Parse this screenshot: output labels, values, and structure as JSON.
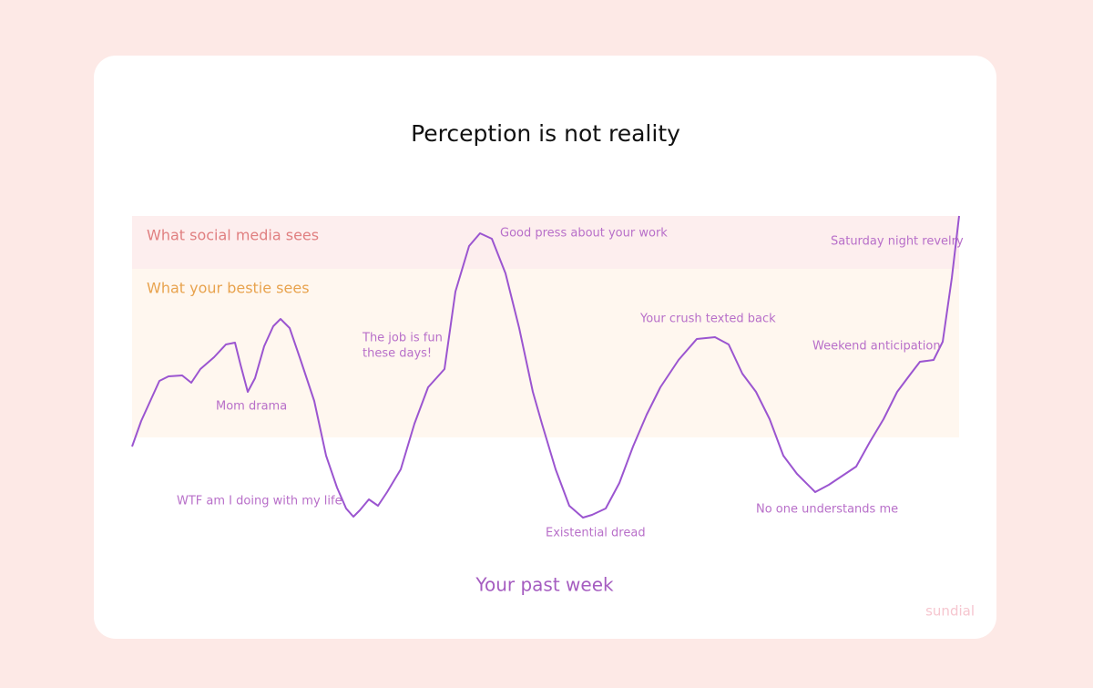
{
  "chart_data": {
    "type": "line",
    "title": "Perception is not reality",
    "x_label": "Your past week",
    "brand": "sundial",
    "xlim": [
      0,
      908
    ],
    "ylim": [
      0,
      343
    ],
    "bands": [
      {
        "label": "What social media sees",
        "from": 285,
        "to": 343,
        "color": "#fdeeee",
        "label_color": "#e07f80"
      },
      {
        "label": "What your bestie sees",
        "from": 100,
        "to": 285,
        "color": "#fff7ef",
        "label_color": "#e8a34e"
      }
    ],
    "series": [
      {
        "name": "Your past week",
        "color": "#9b55d0",
        "x": [
          0,
          10,
          20,
          30,
          40,
          55,
          65,
          75,
          90,
          103,
          113,
          119,
          127,
          135,
          145,
          155,
          163,
          173,
          185,
          200,
          213,
          225,
          235,
          243,
          250,
          260,
          270,
          280,
          295,
          310,
          325,
          343,
          355,
          370,
          382,
          395,
          410,
          425,
          440,
          450,
          465,
          480,
          495,
          505,
          520,
          535,
          550,
          565,
          580,
          600,
          620,
          640,
          655,
          670,
          685,
          700,
          715,
          730,
          750,
          765,
          780,
          795,
          810,
          825,
          840,
          855,
          865,
          880,
          890,
          900,
          908
        ],
        "values": [
          90,
          118,
          140,
          162,
          167,
          168,
          160,
          175,
          188,
          202,
          204,
          180,
          150,
          165,
          200,
          222,
          230,
          220,
          185,
          140,
          80,
          45,
          22,
          13,
          20,
          32,
          25,
          40,
          65,
          115,
          155,
          175,
          260,
          310,
          324,
          318,
          280,
          220,
          150,
          115,
          65,
          25,
          12,
          15,
          22,
          50,
          90,
          125,
          155,
          185,
          208,
          210,
          202,
          170,
          150,
          120,
          80,
          60,
          40,
          48,
          58,
          68,
          95,
          120,
          150,
          170,
          183,
          185,
          205,
          275,
          343
        ]
      }
    ],
    "annotations": [
      [
        "Mom drama"
      ],
      [
        "WTF am I doing with my life"
      ],
      [
        "The job is fun",
        "these days!"
      ],
      [
        "Good press about your work"
      ],
      [
        "Existential dread"
      ],
      [
        "Your crush texted back"
      ],
      [
        "No one understands me"
      ],
      [
        "Weekend anticipation"
      ],
      [
        "Saturday night revelry"
      ]
    ]
  }
}
